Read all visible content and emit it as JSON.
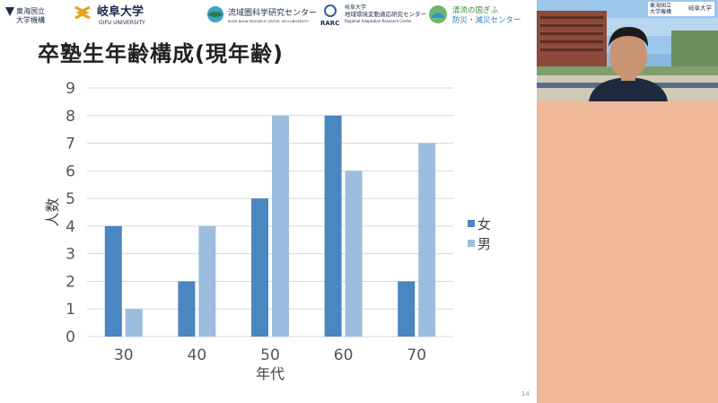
{
  "header": {
    "logos": [
      {
        "name": "tokai-logo",
        "line1": "東海国立",
        "line2": "大学機構"
      },
      {
        "name": "gifu-univ-logo",
        "jp": "岐阜大学",
        "en": "GIFU UNIVERSITY"
      },
      {
        "name": "river-basin-logo",
        "text": "流域圏科学研究センター",
        "sub": "RIVER BASIN RESEARCH CENTER, GIFU UNIVERSITY"
      },
      {
        "name": "rarc-logo",
        "abbr": "RARC",
        "line1": "岐阜大学",
        "line2": "地域環境変動適応研究センター",
        "line3": "Regional Adaptation Research Center"
      },
      {
        "name": "disaster-center-logo",
        "line1": "清流の国ぎふ",
        "line2": "防災・減災センター"
      }
    ]
  },
  "slide": {
    "title": "卒塾生年齢構成(現年齢)",
    "page_number": "14"
  },
  "video": {
    "badge_line1": "東海国立",
    "badge_line2": "大学機構",
    "badge_univ": "岐阜大学"
  },
  "colors": {
    "female": "#4a86bf",
    "male": "#9cbde0",
    "grid": "#d9d9d9"
  },
  "chart_data": {
    "type": "bar",
    "categories": [
      "30",
      "40",
      "50",
      "60",
      "70"
    ],
    "series": [
      {
        "name": "女",
        "values": [
          4,
          2,
          5,
          8,
          2
        ]
      },
      {
        "name": "男",
        "values": [
          1,
          4,
          8,
          6,
          7
        ]
      }
    ],
    "xlabel": "年代",
    "ylabel": "人数",
    "ylim": [
      0,
      9
    ],
    "yticks": [
      "0",
      "1",
      "2",
      "3",
      "4",
      "5",
      "6",
      "7",
      "8",
      "9"
    ],
    "grid": true,
    "legend_position": "right"
  }
}
